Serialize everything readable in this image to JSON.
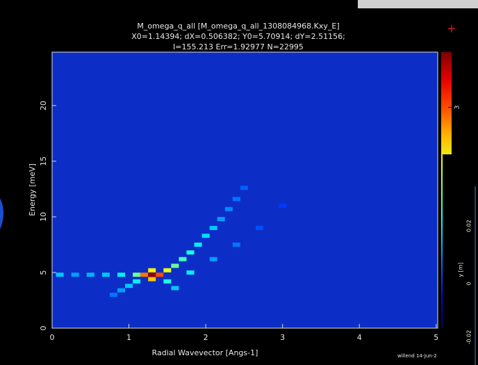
{
  "chart_data": {
    "type": "heatmap",
    "title_lines": [
      "M_omega_q_all [M_omega_q_all_1308084968.Kxy_E]",
      "X0=1.14394; dX=0.506382; Y0=5.70914; dY=2.51156;",
      "I=155.213 Err=1.92977 N=22995"
    ],
    "x_label": "Radial Wavevector [Angs-1]",
    "y_label": "Energy [meV]",
    "xlim": [
      0,
      5.02
    ],
    "xticks": [
      0,
      1,
      2,
      3,
      4,
      5
    ],
    "ylim": [
      0,
      24.8
    ],
    "yticks": [
      0,
      5,
      10,
      15,
      20
    ],
    "clim": [
      1,
      3.5
    ],
    "cticks": [
      3
    ],
    "x": [
      0.1,
      0.3,
      0.5,
      0.7,
      0.9,
      1.1,
      1.2,
      1.3,
      1.4,
      1.3,
      1.3,
      1.5,
      1.6,
      1.7,
      1.8,
      1.9,
      2.0,
      2.1,
      2.2,
      2.3,
      2.4,
      2.5,
      1.1,
      1.0,
      0.9,
      0.8,
      1.5,
      1.8,
      2.1,
      2.4,
      1.6,
      2.7,
      3.0
    ],
    "y": [
      4.8,
      4.8,
      4.8,
      4.8,
      4.8,
      4.8,
      4.8,
      4.8,
      4.8,
      5.2,
      4.4,
      5.2,
      5.6,
      6.2,
      6.8,
      7.5,
      8.3,
      9.0,
      9.8,
      10.7,
      11.6,
      12.6,
      4.2,
      3.8,
      3.4,
      3.0,
      4.2,
      5.0,
      6.2,
      7.5,
      3.6,
      9.0,
      11.0
    ],
    "values": [
      1.8,
      1.7,
      1.75,
      1.8,
      1.9,
      2.2,
      2.9,
      3.45,
      3.0,
      2.6,
      2.7,
      2.5,
      2.2,
      2.1,
      2.0,
      1.9,
      1.85,
      1.8,
      1.7,
      1.65,
      1.6,
      1.55,
      1.9,
      1.8,
      1.7,
      1.6,
      2.0,
      1.9,
      1.7,
      1.6,
      1.8,
      1.5,
      1.45
    ]
  },
  "signature": "willend 14-Jun-2",
  "side_window": {
    "ticks": [
      "0.02",
      "0",
      "-0.02"
    ],
    "axis_label": "y [m]"
  }
}
